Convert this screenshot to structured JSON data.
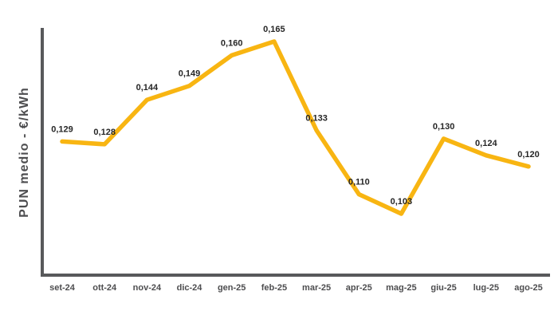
{
  "chart_data": {
    "type": "line",
    "title": "",
    "ylabel": "PUN medio - €/kWh",
    "xlabel": "",
    "categories": [
      "set-24",
      "ott-24",
      "nov-24",
      "dic-24",
      "gen-25",
      "feb-25",
      "mar-25",
      "apr-25",
      "mag-25",
      "giu-25",
      "lug-25",
      "ago-25"
    ],
    "values": [
      0.129,
      0.128,
      0.144,
      0.149,
      0.16,
      0.165,
      0.133,
      0.11,
      0.103,
      0.13,
      0.124,
      0.12
    ],
    "point_labels": [
      "0,129",
      "0,128",
      "0,144",
      "0,149",
      "0,160",
      "0,165",
      "0,133",
      "0,110",
      "0,103",
      "0,130",
      "0,124",
      "0,120"
    ],
    "ylim": [
      0.103,
      0.165
    ],
    "grid": false,
    "legend": "none",
    "line_color": "#F8B512",
    "axis_color": "#58595B",
    "point_label_color": "#262626",
    "tick_label_color": "#4D4D4F"
  }
}
